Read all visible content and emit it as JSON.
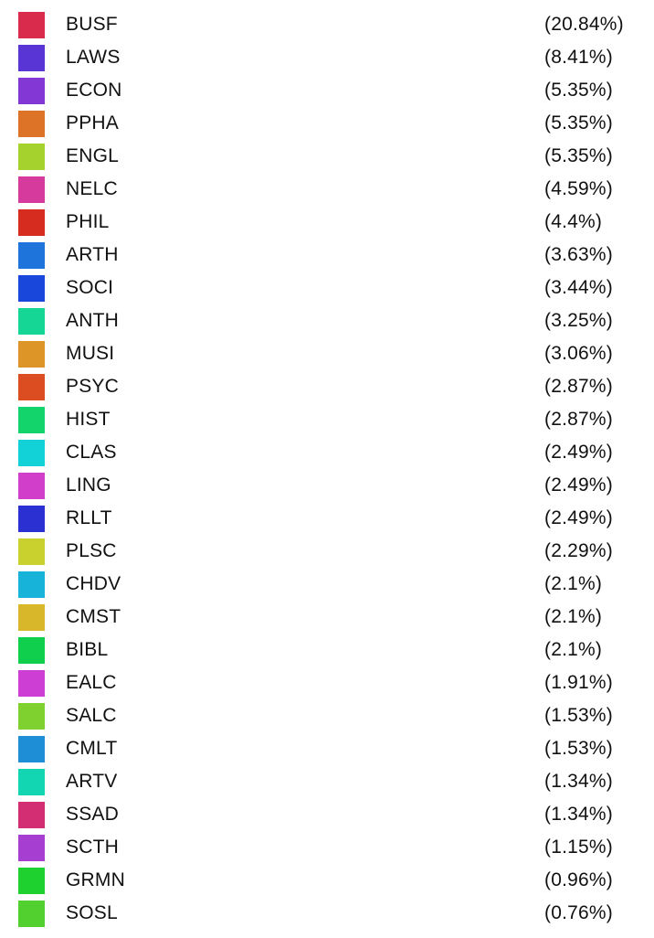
{
  "chart_data": {
    "type": "pie",
    "title": "",
    "legend_position": "list",
    "items": [
      {
        "label": "BUSF",
        "value_text": "(20.84%)",
        "value": 20.84,
        "color": "#d92b4b"
      },
      {
        "label": "LAWS",
        "value_text": "(8.41%)",
        "value": 8.41,
        "color": "#5a35d6"
      },
      {
        "label": "ECON",
        "value_text": "(5.35%)",
        "value": 5.35,
        "color": "#8338d6"
      },
      {
        "label": "PPHA",
        "value_text": "(5.35%)",
        "value": 5.35,
        "color": "#dd7326"
      },
      {
        "label": "ENGL",
        "value_text": "(5.35%)",
        "value": 5.35,
        "color": "#a5d22d"
      },
      {
        "label": "NELC",
        "value_text": "(4.59%)",
        "value": 4.59,
        "color": "#d63a9c"
      },
      {
        "label": "PHIL",
        "value_text": "(4.4%)",
        "value": 4.4,
        "color": "#d62b1f"
      },
      {
        "label": "ARTH",
        "value_text": "(3.63%)",
        "value": 3.63,
        "color": "#1f74db"
      },
      {
        "label": "SOCI",
        "value_text": "(3.44%)",
        "value": 3.44,
        "color": "#1947db"
      },
      {
        "label": "ANTH",
        "value_text": "(3.25%)",
        "value": 3.25,
        "color": "#15d694"
      },
      {
        "label": "MUSI",
        "value_text": "(3.06%)",
        "value": 3.06,
        "color": "#dd9527"
      },
      {
        "label": "PSYC",
        "value_text": "(2.87%)",
        "value": 2.87,
        "color": "#dd4d22"
      },
      {
        "label": "HIST",
        "value_text": "(2.87%)",
        "value": 2.87,
        "color": "#12d46b"
      },
      {
        "label": "CLAS",
        "value_text": "(2.49%)",
        "value": 2.49,
        "color": "#12d2d8"
      },
      {
        "label": "LING",
        "value_text": "(2.49%)",
        "value": 2.49,
        "color": "#d13fca"
      },
      {
        "label": "RLLT",
        "value_text": "(2.49%)",
        "value": 2.49,
        "color": "#2a30d2"
      },
      {
        "label": "PLSC",
        "value_text": "(2.29%)",
        "value": 2.29,
        "color": "#c8d12d"
      },
      {
        "label": "CHDV",
        "value_text": "(2.1%)",
        "value": 2.1,
        "color": "#17b3d8"
      },
      {
        "label": "CMST",
        "value_text": "(2.1%)",
        "value": 2.1,
        "color": "#d8b72a"
      },
      {
        "label": "BIBL",
        "value_text": "(2.1%)",
        "value": 2.1,
        "color": "#10cf4c"
      },
      {
        "label": "EALC",
        "value_text": "(1.91%)",
        "value": 1.91,
        "color": "#cc3ed4"
      },
      {
        "label": "SALC",
        "value_text": "(1.53%)",
        "value": 1.53,
        "color": "#7fd12f"
      },
      {
        "label": "CMLT",
        "value_text": "(1.53%)",
        "value": 1.53,
        "color": "#1e8fd6"
      },
      {
        "label": "ARTV",
        "value_text": "(1.34%)",
        "value": 1.34,
        "color": "#11d6b1"
      },
      {
        "label": "SSAD",
        "value_text": "(1.34%)",
        "value": 1.34,
        "color": "#d32e74"
      },
      {
        "label": "SCTH",
        "value_text": "(1.15%)",
        "value": 1.15,
        "color": "#a63ed2"
      },
      {
        "label": "GRMN",
        "value_text": "(0.96%)",
        "value": 0.96,
        "color": "#1fd12f"
      },
      {
        "label": "SOSL",
        "value_text": "(0.76%)",
        "value": 0.76,
        "color": "#52d02f"
      }
    ]
  }
}
